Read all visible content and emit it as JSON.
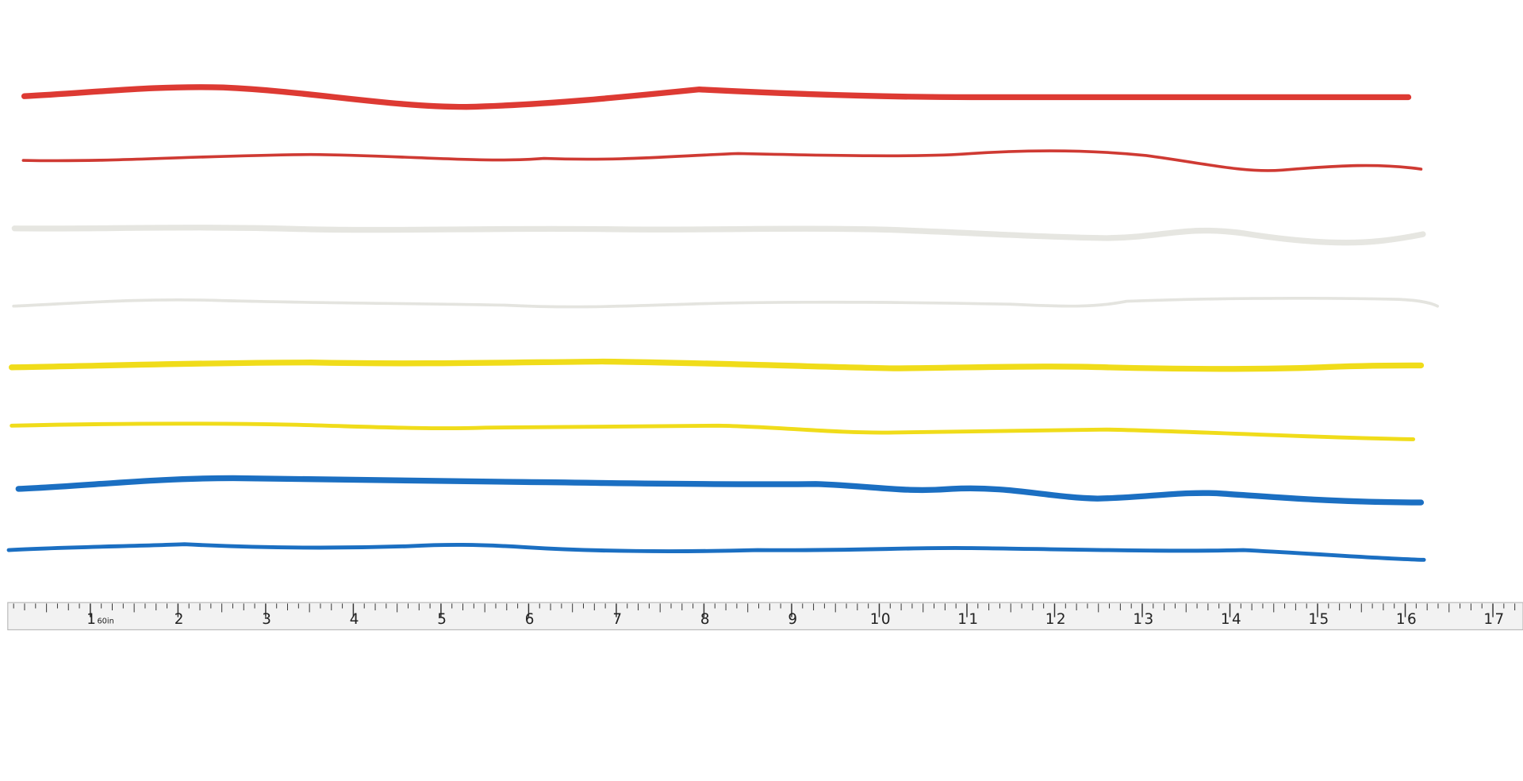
{
  "tape": {
    "labels": [
      "1",
      "2",
      "3",
      "4",
      "5",
      "6",
      "7",
      "8",
      "9",
      "10",
      "11",
      "12",
      "13",
      "14",
      "15",
      "16",
      "17"
    ],
    "unit_mark": "60in"
  }
}
